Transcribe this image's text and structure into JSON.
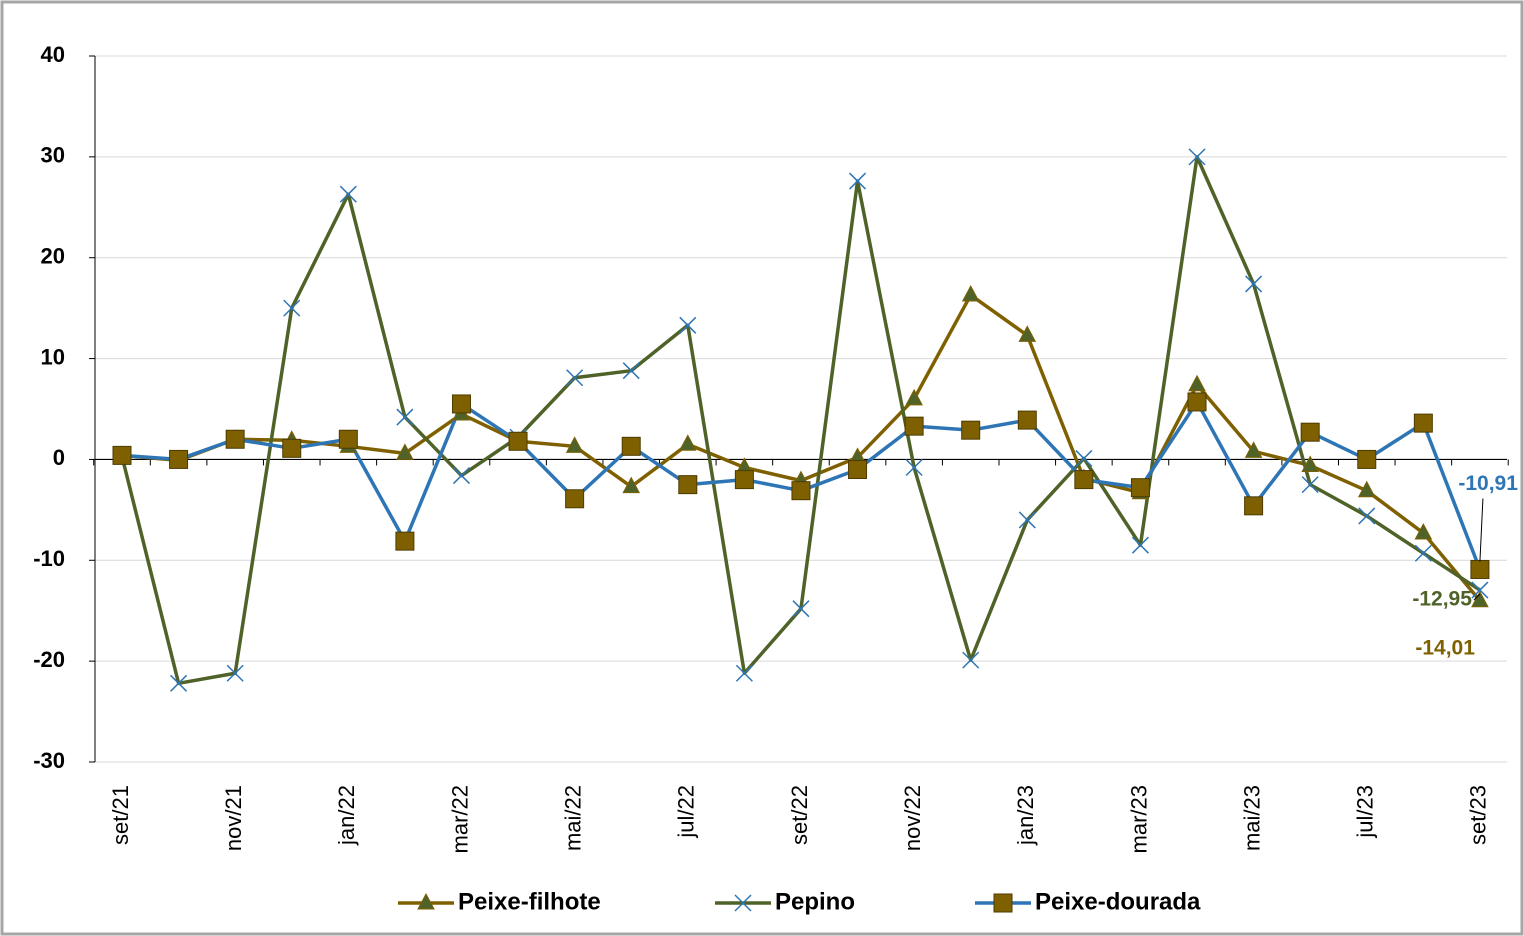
{
  "chart_data": {
    "type": "line",
    "categories": [
      "set/21",
      null,
      "nov/21",
      null,
      "jan/22",
      null,
      "mar/22",
      null,
      "mai/22",
      null,
      "jul/22",
      null,
      "set/22",
      null,
      "nov/22",
      null,
      "jan/23",
      null,
      "mar/23",
      null,
      "mai/23",
      null,
      "jul/23",
      null,
      "set/23"
    ],
    "ylim": [
      -30,
      40
    ],
    "yticks": [
      -30,
      -20,
      -10,
      0,
      10,
      20,
      30,
      40
    ],
    "grid": true,
    "legend": "bottom",
    "series": [
      {
        "name": "Peixe-filhote",
        "color": "#7f6000",
        "marker": "triangle",
        "marker_color": "#4f6228",
        "values": [
          0.4,
          -0.1,
          2,
          1.9,
          1.3,
          0.6,
          4.5,
          1.8,
          1.3,
          -2.7,
          1.5,
          -0.8,
          -2.1,
          0.2,
          6,
          16.3,
          12.3,
          -1.9,
          -3.3,
          7.4,
          0.8,
          -0.6,
          -3.1,
          -7.3,
          -14.01
        ],
        "value_labels": [
          null,
          null,
          null,
          null,
          null,
          null,
          null,
          null,
          null,
          null,
          null,
          null,
          null,
          null,
          null,
          null,
          null,
          null,
          null,
          null,
          null,
          null,
          null,
          null,
          "-14,01"
        ]
      },
      {
        "name": "Pepino",
        "color": "#4f6228",
        "marker": "x",
        "marker_color": "#2e75b6",
        "values": [
          0.3,
          -22.2,
          -21.2,
          15,
          26.3,
          4.2,
          -1.6,
          2.2,
          8.1,
          8.8,
          13.3,
          -21.2,
          -14.8,
          27.6,
          -0.8,
          -19.9,
          -6,
          0.1,
          -8.5,
          30,
          17.4,
          -2.5,
          -5.6,
          -9.3,
          -12.95
        ],
        "value_labels": [
          null,
          null,
          null,
          null,
          null,
          null,
          null,
          null,
          null,
          null,
          null,
          null,
          null,
          null,
          null,
          null,
          null,
          null,
          null,
          null,
          null,
          null,
          null,
          null,
          "-12,95"
        ]
      },
      {
        "name": "Peixe-dourada",
        "color": "#2e75b6",
        "marker": "square",
        "marker_color": "#7f6000",
        "values": [
          0.4,
          0,
          2,
          1.1,
          2,
          -8.1,
          5.5,
          1.8,
          -3.9,
          1.3,
          -2.5,
          -2,
          -3.1,
          -1,
          3.3,
          2.9,
          3.9,
          -2,
          -2.8,
          5.7,
          -4.6,
          2.7,
          0,
          3.6,
          -10.91
        ],
        "value_labels": [
          null,
          null,
          null,
          null,
          null,
          null,
          null,
          null,
          null,
          null,
          null,
          null,
          null,
          null,
          null,
          null,
          null,
          null,
          null,
          null,
          null,
          null,
          null,
          null,
          "-10,91"
        ]
      }
    ]
  }
}
